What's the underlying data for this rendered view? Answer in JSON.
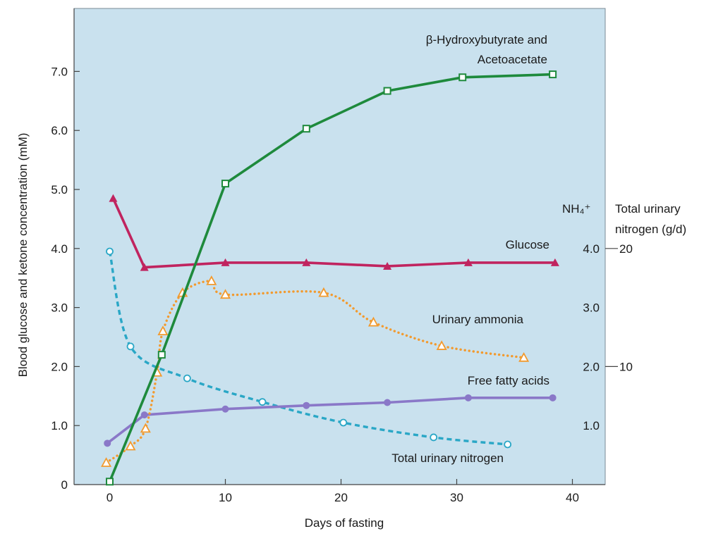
{
  "chart_data": {
    "type": "line",
    "xlabel": "Days of fasting",
    "ylabel": "Blood glucose and ketone concentration (mM)",
    "xlim": [
      -3,
      41.5
    ],
    "ylim": [
      0,
      7.7
    ],
    "x_ticks": [
      "0",
      "10",
      "20",
      "30",
      "40"
    ],
    "y_ticks": [
      "0",
      "1.0",
      "2.0",
      "3.0",
      "4.0",
      "5.0",
      "6.0",
      "7.0"
    ],
    "right_axis": {
      "ammonia_label": "NH₄⁺",
      "ammonia_ticks": [
        "1.0",
        "2.0",
        "3.0",
        "4.0"
      ],
      "nitrogen_label_line1": "Total urinary",
      "nitrogen_label_line2": "nitrogen (g/d)",
      "nitrogen_ticks": [
        "10",
        "20"
      ]
    },
    "background_color": "#c9e1ee",
    "grid": false,
    "series": [
      {
        "key": "ketones",
        "name_line1": "β-Hydroxybutyrate and",
        "name_line2": "Acetoacetate",
        "color": "#1e8a3c",
        "dash": "solid",
        "marker": "open-square",
        "x": [
          0,
          4.5,
          10,
          17,
          24,
          30.5,
          38.3
        ],
        "y": [
          0.05,
          2.2,
          5.1,
          6.03,
          6.67,
          6.9,
          6.95
        ]
      },
      {
        "key": "glucose",
        "name": "Glucose",
        "color": "#c0245f",
        "dash": "solid",
        "marker": "filled-triangle",
        "x": [
          0.3,
          3,
          10,
          17,
          24,
          31,
          38.5
        ],
        "y": [
          4.85,
          3.68,
          3.76,
          3.76,
          3.7,
          3.76,
          3.76
        ]
      },
      {
        "key": "ammonia",
        "name": "Urinary ammonia",
        "color": "#f29a2e",
        "dash": "dotted",
        "marker": "open-triangle",
        "x": [
          -0.3,
          1.8,
          3.1,
          4.1,
          4.6,
          6.3,
          8.8,
          10,
          18.5,
          22.8,
          28.7,
          35.8
        ],
        "y": [
          0.37,
          0.65,
          0.95,
          1.9,
          2.6,
          3.25,
          3.45,
          3.22,
          3.25,
          2.75,
          2.35,
          2.15
        ]
      },
      {
        "key": "ffa",
        "name": "Free fatty acids",
        "color": "#8a78c8",
        "dash": "solid",
        "marker": "filled-circle",
        "x": [
          -0.2,
          3,
          10,
          17,
          24,
          31,
          38.3
        ],
        "y": [
          0.7,
          1.18,
          1.28,
          1.34,
          1.39,
          1.47,
          1.47
        ]
      },
      {
        "key": "nitrogen",
        "name": "Total urinary nitrogen",
        "color": "#2aa7c6",
        "dash": "dashed",
        "marker": "open-circle",
        "x": [
          0,
          1.8,
          6.7,
          13.2,
          20.2,
          28,
          34.4
        ],
        "y": [
          3.95,
          2.34,
          1.8,
          1.4,
          1.05,
          0.8,
          0.68
        ]
      }
    ]
  }
}
